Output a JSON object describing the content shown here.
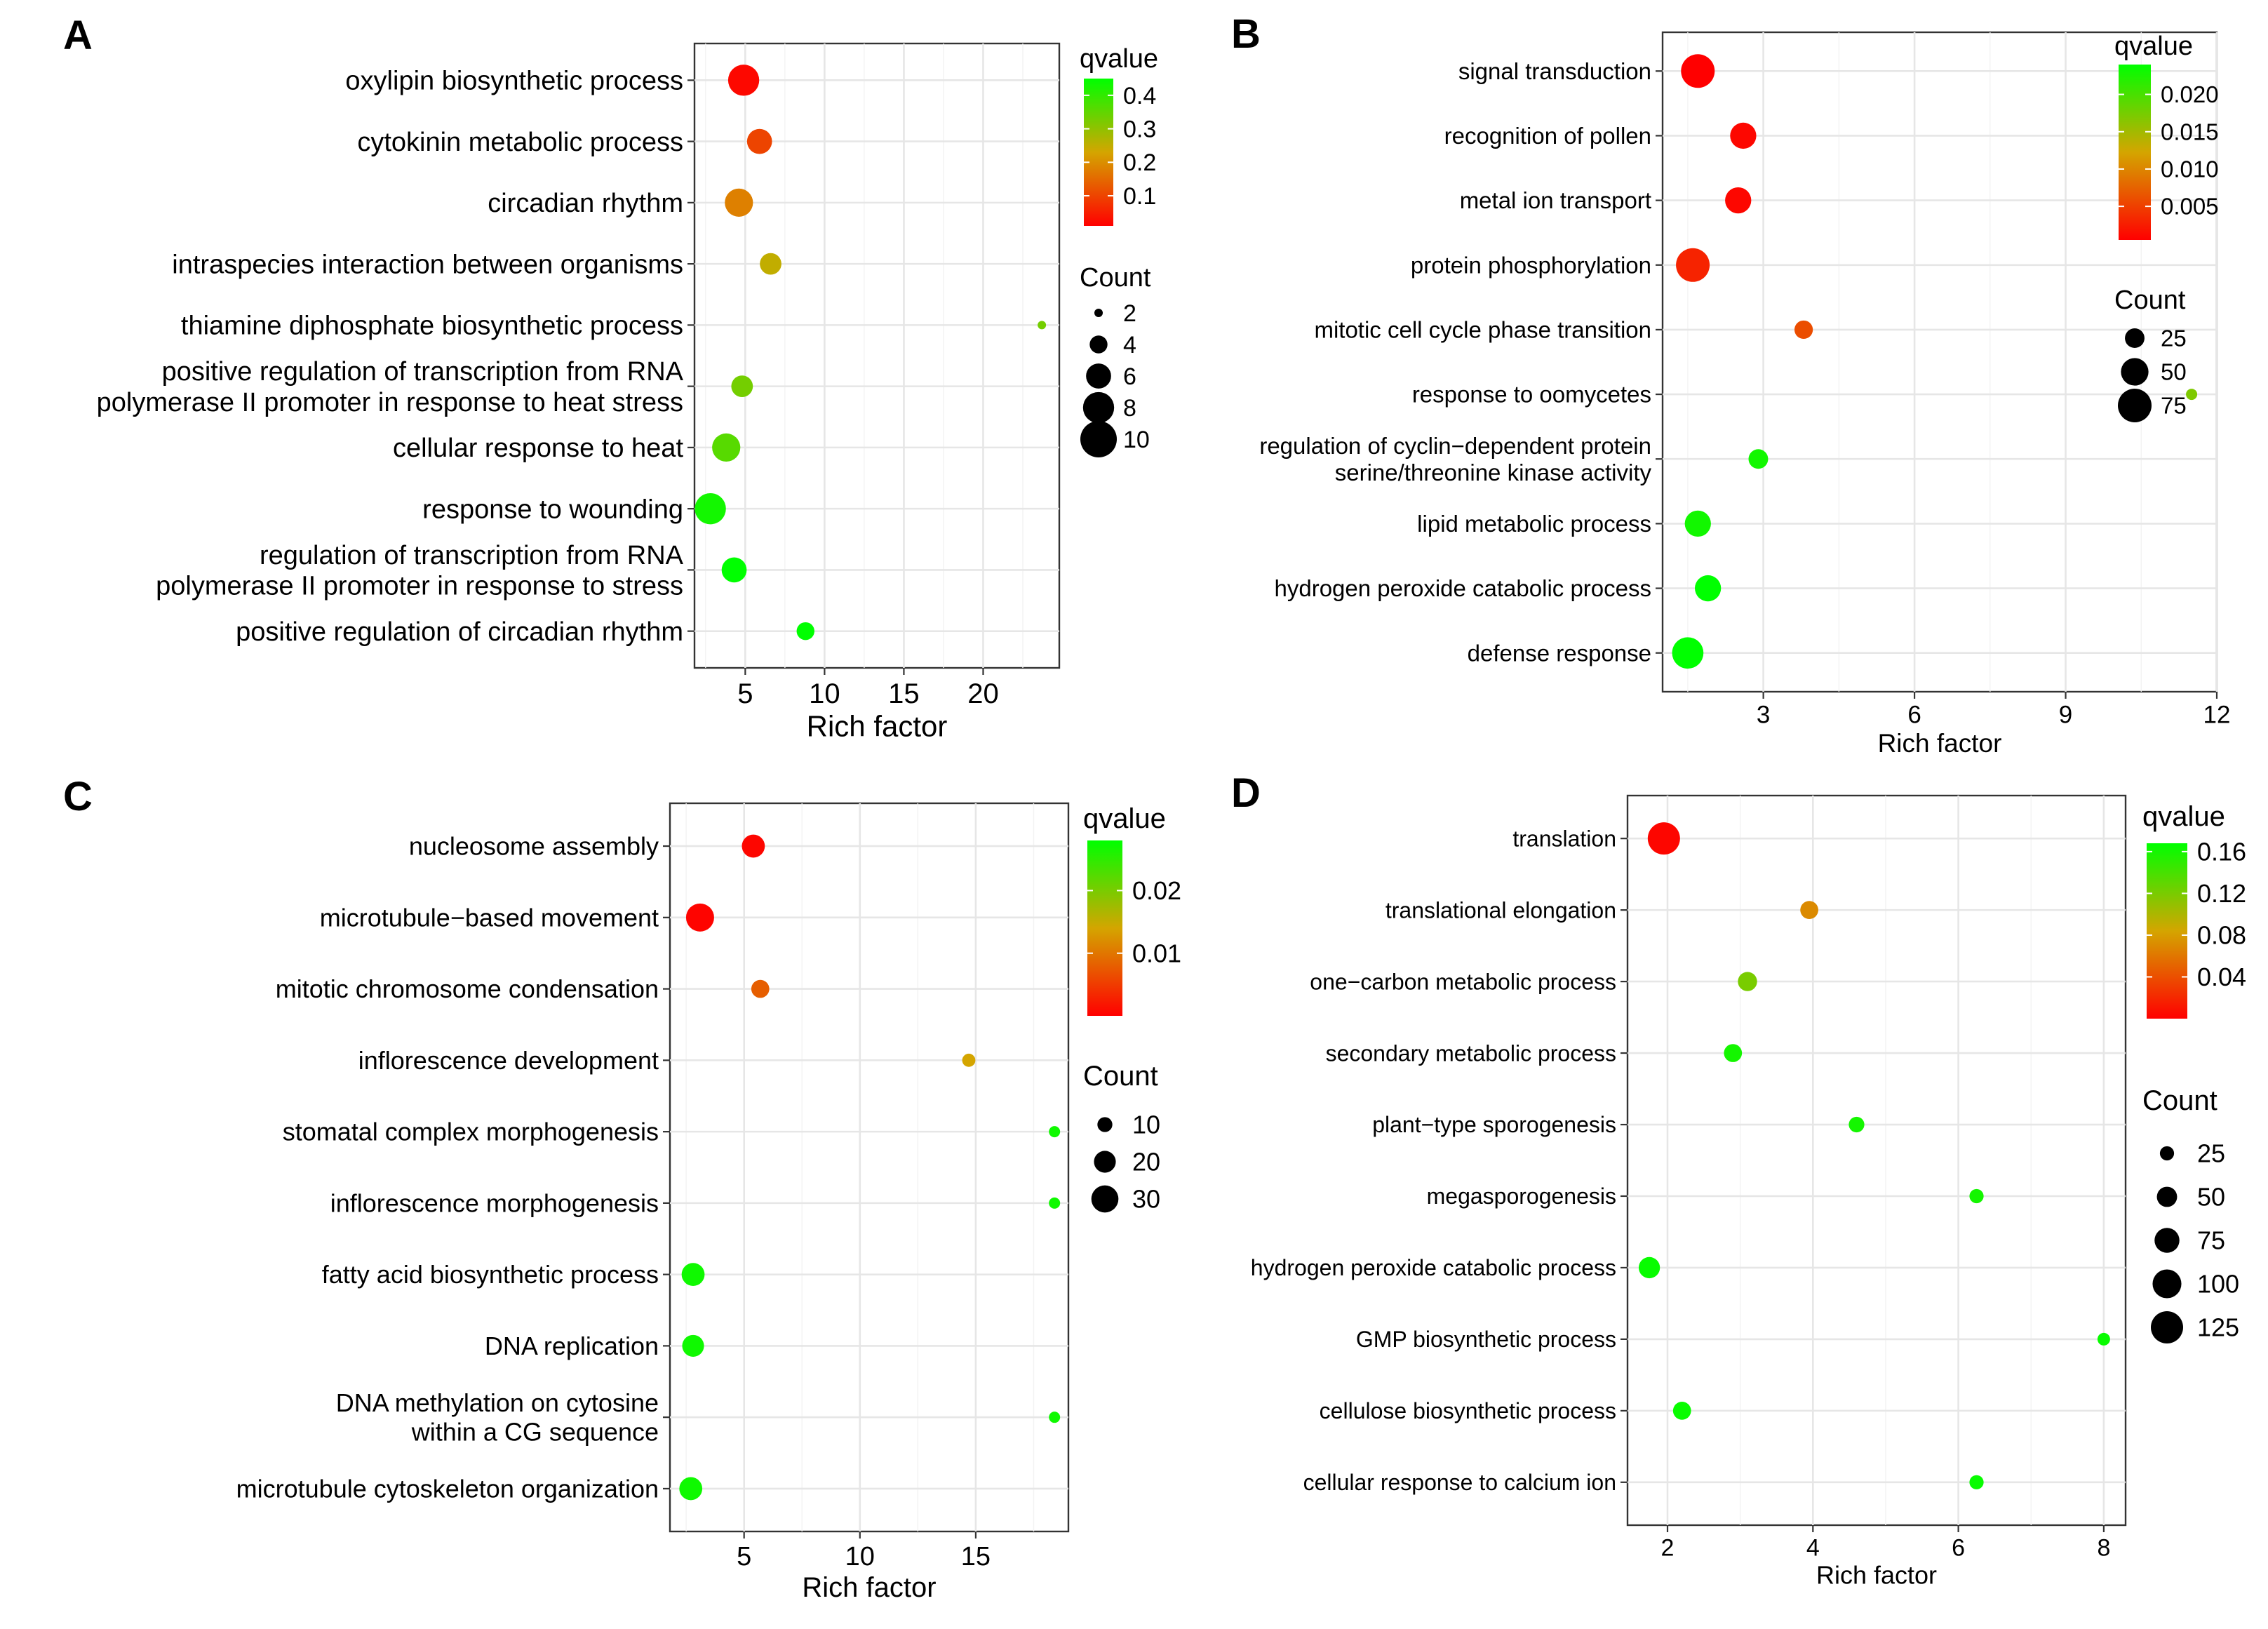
{
  "figure": {
    "panels": [
      "A",
      "B",
      "C",
      "D"
    ]
  },
  "colors": {
    "low_q": "#ff0000",
    "mid_q": "#d4a500",
    "high_q": "#00ff00",
    "point_outline": "none",
    "panel_border": "#333333"
  },
  "chart_data": [
    {
      "panel": "A",
      "type": "scatter",
      "xlabel": "Rich factor",
      "xticks": [
        5,
        10,
        15,
        20
      ],
      "xlim": [
        1.8,
        24.8
      ],
      "categories": [
        [
          "oxylipin biosynthetic process"
        ],
        [
          "cytokinin metabolic process"
        ],
        [
          "circadian rhythm"
        ],
        [
          "intraspecies interaction between organisms"
        ],
        [
          "thiamine diphosphate biosynthetic process"
        ],
        [
          "positive regulation of transcription from RNA",
          "polymerase II promoter in response to heat stress"
        ],
        [
          "cellular response to heat"
        ],
        [
          "response to wounding"
        ],
        [
          "regulation of transcription from RNA",
          "polymerase II promoter in response to stress"
        ],
        [
          "positive regulation of circadian rhythm"
        ]
      ],
      "x": [
        4.9,
        5.9,
        4.6,
        6.6,
        23.7,
        4.8,
        3.8,
        2.8,
        4.3,
        8.8
      ],
      "qvalue": [
        0.02,
        0.1,
        0.18,
        0.25,
        0.33,
        0.33,
        0.36,
        0.43,
        0.45,
        0.45
      ],
      "count": [
        8,
        6,
        7,
        5,
        2,
        5,
        7,
        8,
        6,
        4
      ],
      "color_legend": {
        "title": "qvalue",
        "ticks": [
          0.4,
          0.3,
          0.2,
          0.1
        ],
        "labels": [
          "0.4",
          "0.3",
          "0.2",
          "0.1"
        ],
        "min": 0.01,
        "max": 0.45
      },
      "size_legend": {
        "title": "Count",
        "values": [
          2,
          4,
          6,
          8,
          10
        ],
        "labels": [
          "2",
          "4",
          "6",
          "8",
          "10"
        ]
      }
    },
    {
      "panel": "B",
      "type": "scatter",
      "xlabel": "Rich factor",
      "xticks": [
        3,
        6,
        9,
        12
      ],
      "xlim": [
        1.0,
        12.0
      ],
      "categories": [
        [
          "signal transduction"
        ],
        [
          "recognition of pollen"
        ],
        [
          "metal ion transport"
        ],
        [
          "protein phosphorylation"
        ],
        [
          "mitotic cell cycle phase transition"
        ],
        [
          "response to oomycetes"
        ],
        [
          "regulation of cyclin−dependent protein",
          "serine/threonine kinase activity"
        ],
        [
          "lipid metabolic process"
        ],
        [
          "hydrogen peroxide catabolic process"
        ],
        [
          "defense response"
        ]
      ],
      "x": [
        1.7,
        2.6,
        2.5,
        1.6,
        3.8,
        11.5,
        2.9,
        1.7,
        1.9,
        1.5
      ],
      "qvalue": [
        0.0005,
        0.001,
        0.001,
        0.003,
        0.006,
        0.017,
        0.023,
        0.023,
        0.024,
        0.024
      ],
      "count": [
        75,
        45,
        45,
        75,
        22,
        8,
        25,
        45,
        45,
        65
      ],
      "color_legend": {
        "title": "qvalue",
        "ticks": [
          0.02,
          0.015,
          0.01,
          0.005
        ],
        "labels": [
          "0.020",
          "0.015",
          "0.010",
          "0.005"
        ],
        "min": 0.0005,
        "max": 0.024
      },
      "size_legend": {
        "title": "Count",
        "values": [
          25,
          50,
          75
        ],
        "labels": [
          "25",
          "50",
          "75"
        ]
      }
    },
    {
      "panel": "C",
      "type": "scatter",
      "xlabel": "Rich factor",
      "xticks": [
        5,
        10,
        15
      ],
      "xlim": [
        1.8,
        19.0
      ],
      "categories": [
        [
          "nucleosome assembly"
        ],
        [
          "microtubule−based movement"
        ],
        [
          "mitotic chromosome condensation"
        ],
        [
          "inflorescence development"
        ],
        [
          "stomatal complex morphogenesis"
        ],
        [
          "inflorescence morphogenesis"
        ],
        [
          "fatty acid biosynthetic process"
        ],
        [
          "DNA replication"
        ],
        [
          "DNA methylation on cytosine",
          "within a CG sequence"
        ],
        [
          "microtubule cytoskeleton organization"
        ]
      ],
      "x": [
        5.4,
        3.1,
        5.7,
        14.7,
        18.4,
        18.4,
        2.8,
        2.8,
        18.4,
        2.7
      ],
      "qvalue": [
        0.0005,
        0.0003,
        0.008,
        0.014,
        0.027,
        0.027,
        0.027,
        0.027,
        0.027,
        0.027
      ],
      "count": [
        22,
        32,
        14,
        8,
        6,
        6,
        22,
        20,
        6,
        22
      ],
      "color_legend": {
        "title": "qvalue",
        "ticks": [
          0.02,
          0.01
        ],
        "labels": [
          "0.02",
          "0.01"
        ],
        "min": 0.0,
        "max": 0.028
      },
      "size_legend": {
        "title": "Count",
        "values": [
          10,
          20,
          30
        ],
        "labels": [
          "10",
          "20",
          "30"
        ]
      }
    },
    {
      "panel": "D",
      "type": "scatter",
      "xlabel": "Rich factor",
      "xticks": [
        2,
        4,
        6,
        8
      ],
      "xlim": [
        1.45,
        8.3
      ],
      "categories": [
        [
          "translation"
        ],
        [
          "translational elongation"
        ],
        [
          "one−carbon metabolic process"
        ],
        [
          "secondary metabolic process"
        ],
        [
          "plant−type sporogenesis"
        ],
        [
          "megasporogenesis"
        ],
        [
          "hydrogen peroxide catabolic process"
        ],
        [
          "GMP biosynthetic process"
        ],
        [
          "cellulose biosynthetic process"
        ],
        [
          "cellular response to calcium ion"
        ]
      ],
      "x": [
        1.95,
        3.95,
        3.1,
        2.9,
        4.6,
        6.25,
        1.75,
        8.0,
        2.2,
        6.25
      ],
      "qvalue": [
        0.003,
        0.07,
        0.12,
        0.16,
        0.16,
        0.16,
        0.165,
        0.165,
        0.165,
        0.165
      ],
      "count": [
        125,
        40,
        45,
        40,
        30,
        25,
        55,
        20,
        40,
        25
      ],
      "color_legend": {
        "title": "qvalue",
        "ticks": [
          0.16,
          0.12,
          0.08,
          0.04
        ],
        "labels": [
          "0.16",
          "0.12",
          "0.08",
          "0.04"
        ],
        "min": 0.0,
        "max": 0.168
      },
      "size_legend": {
        "title": "Count",
        "values": [
          25,
          50,
          75,
          100,
          125
        ],
        "labels": [
          "25",
          "50",
          "75",
          "100",
          "125"
        ]
      }
    }
  ]
}
